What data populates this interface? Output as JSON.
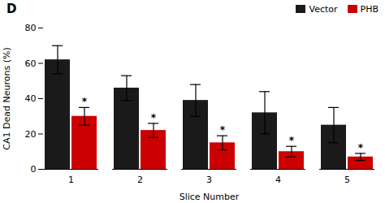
{
  "chart_data": {
    "type": "bar",
    "title": "D",
    "xlabel": "Slice Number",
    "ylabel": "CA1 Dead Neurons (%)",
    "categories": [
      "1",
      "2",
      "3",
      "4",
      "5"
    ],
    "series": [
      {
        "name": "Vector",
        "color": "#1a1a1a",
        "values": [
          62,
          46,
          39,
          32,
          25
        ],
        "errors": [
          8,
          7,
          9,
          12,
          10
        ]
      },
      {
        "name": "PHB",
        "color": "#cc0000",
        "values": [
          30,
          22,
          15,
          10,
          7
        ],
        "errors": [
          5,
          4,
          4,
          3,
          2
        ]
      }
    ],
    "ylim": [
      0,
      80
    ],
    "yticks": [
      0,
      20,
      40,
      60,
      80
    ],
    "grid": false,
    "legend": "upper right",
    "annotations": [
      {
        "text": "*",
        "category": "1",
        "series": "PHB"
      },
      {
        "text": "*",
        "category": "2",
        "series": "PHB"
      },
      {
        "text": "*",
        "category": "3",
        "series": "PHB"
      },
      {
        "text": "*",
        "category": "4",
        "series": "PHB"
      },
      {
        "text": "*",
        "category": "5",
        "series": "PHB"
      }
    ]
  }
}
